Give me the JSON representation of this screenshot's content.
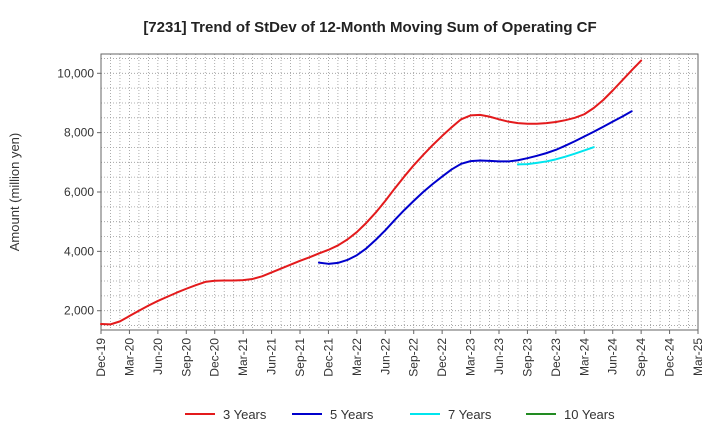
{
  "chart_data": {
    "type": "line",
    "title": "[7231]  Trend of StDev of 12-Month Moving Sum of Operating CF",
    "xlabel": "",
    "ylabel": "Amount (million yen)",
    "ylim": [
      1350,
      10650
    ],
    "yticks": [
      2000,
      4000,
      6000,
      8000,
      10000
    ],
    "ytick_labels": [
      "2,000",
      "4,000",
      "6,000",
      "8,000",
      "10,000"
    ],
    "x_categories": [
      "Dec-19",
      "Mar-20",
      "Jun-20",
      "Sep-20",
      "Dec-20",
      "Mar-21",
      "Jun-21",
      "Sep-21",
      "Dec-21",
      "Mar-22",
      "Jun-22",
      "Sep-22",
      "Dec-22",
      "Mar-23",
      "Jun-23",
      "Sep-23",
      "Dec-23",
      "Mar-24",
      "Jun-24",
      "Sep-24",
      "Dec-24",
      "Mar-25"
    ],
    "grid": true,
    "legend_position": "bottom",
    "series": [
      {
        "name": "3 Years",
        "color": "#e31a1c",
        "start": "Dec-19",
        "values": [
          1550,
          1540,
          1640,
          1820,
          2000,
          2170,
          2330,
          2470,
          2610,
          2740,
          2860,
          2970,
          3010,
          3020,
          3020,
          3030,
          3070,
          3160,
          3290,
          3420,
          3550,
          3680,
          3800,
          3930,
          4050,
          4200,
          4400,
          4650,
          4960,
          5310,
          5700,
          6120,
          6520,
          6900,
          7250,
          7580,
          7890,
          8180,
          8450,
          8580,
          8600,
          8540,
          8450,
          8370,
          8320,
          8300,
          8300,
          8320,
          8360,
          8420,
          8500,
          8620,
          8830,
          9100,
          9420,
          9760,
          10100,
          10430
        ]
      },
      {
        "name": "5 Years",
        "color": "#0000cc",
        "start": "Nov-21",
        "values": [
          3620,
          3580,
          3610,
          3710,
          3870,
          4100,
          4390,
          4710,
          5060,
          5390,
          5700,
          6000,
          6270,
          6520,
          6760,
          6950,
          7040,
          7060,
          7050,
          7030,
          7030,
          7070,
          7140,
          7220,
          7310,
          7420,
          7560,
          7710,
          7870,
          8030,
          8200,
          8370,
          8540,
          8720
        ]
      },
      {
        "name": "7 Years",
        "color": "#00e5ee",
        "start": "Aug-23",
        "values": [
          6930,
          6940,
          6980,
          7030,
          7100,
          7190,
          7290,
          7400,
          7510
        ]
      },
      {
        "name": "10 Years",
        "color": "#228b22",
        "start": "",
        "values": []
      }
    ]
  }
}
